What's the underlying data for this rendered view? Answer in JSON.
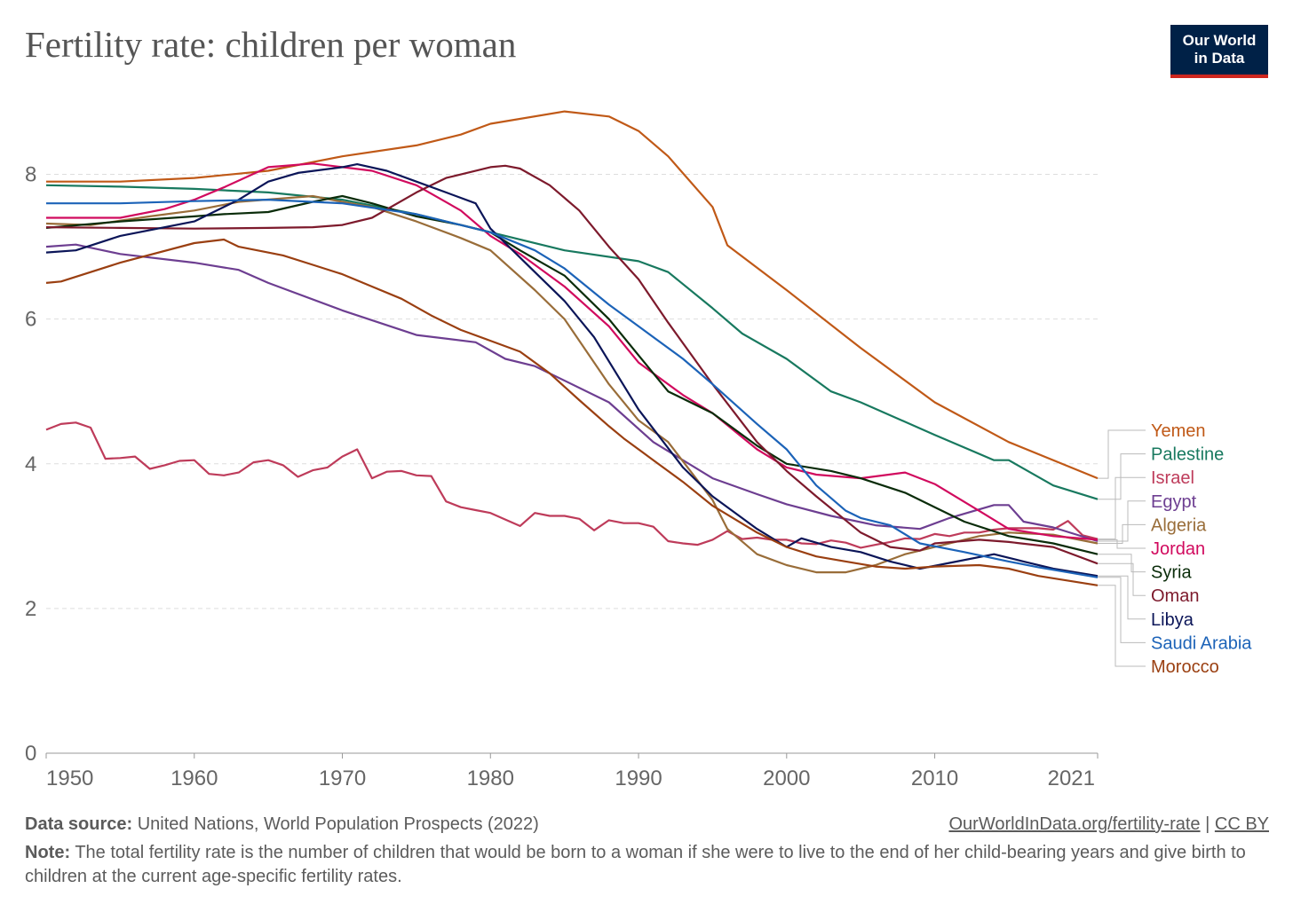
{
  "title": "Fertility rate: children per woman",
  "logo": {
    "line1": "Our World",
    "line2": "in Data"
  },
  "footer": {
    "source_label": "Data source:",
    "source_text": "United Nations, World Population Prospects (2022)",
    "note_label": "Note:",
    "note_text": "The total fertility rate is the number of children that would be born to a woman if she were to live to the end of her child-bearing years and give birth to children at the current age-specific fertility rates.",
    "link_text": "OurWorldInData.org/fertility-rate",
    "separator": "|",
    "license": "CC BY"
  },
  "chart_data": {
    "type": "line",
    "title": "Fertility rate: children per woman",
    "xlabel": "",
    "ylabel": "",
    "xlim": [
      1950,
      2021
    ],
    "ylim": [
      0,
      9
    ],
    "xticks": [
      "1950",
      "1960",
      "1970",
      "1980",
      "1990",
      "2000",
      "2010",
      "2021"
    ],
    "xtick_values": [
      1950,
      1960,
      1970,
      1980,
      1990,
      2000,
      2010,
      2021
    ],
    "yticks": [
      "0",
      "2",
      "4",
      "6",
      "8"
    ],
    "ytick_values": [
      0,
      2,
      4,
      6,
      8
    ],
    "grid": "horizontal dashed",
    "legend_position": "right",
    "series": [
      {
        "name": "Yemen",
        "color": "#c05917",
        "x": [
          1950,
          1955,
          1960,
          1965,
          1970,
          1975,
          1978,
          1980,
          1985,
          1988,
          1990,
          1992,
          1995,
          1996,
          2000,
          2005,
          2010,
          2015,
          2021
        ],
        "y": [
          7.9,
          7.9,
          7.95,
          8.05,
          8.25,
          8.4,
          8.55,
          8.7,
          8.87,
          8.8,
          8.6,
          8.25,
          7.55,
          7.02,
          6.4,
          5.6,
          4.85,
          4.3,
          3.8
        ]
      },
      {
        "name": "Palestine",
        "color": "#18795f",
        "x": [
          1950,
          1955,
          1960,
          1965,
          1970,
          1975,
          1980,
          1985,
          1990,
          1992,
          1995,
          1997,
          2000,
          2003,
          2005,
          2010,
          2014,
          2015,
          2018,
          2021
        ],
        "y": [
          7.85,
          7.83,
          7.8,
          7.75,
          7.65,
          7.45,
          7.2,
          6.95,
          6.8,
          6.65,
          6.15,
          5.8,
          5.45,
          5.0,
          4.85,
          4.4,
          4.05,
          4.05,
          3.7,
          3.51
        ]
      },
      {
        "name": "Israel",
        "color": "#be3b5a",
        "x": [
          1950,
          1951,
          1952,
          1953,
          1954,
          1955,
          1956,
          1957,
          1958,
          1959,
          1960,
          1961,
          1962,
          1963,
          1964,
          1965,
          1966,
          1967,
          1968,
          1969,
          1970,
          1971,
          1972,
          1973,
          1974,
          1975,
          1976,
          1977,
          1978,
          1979,
          1980,
          1981,
          1982,
          1983,
          1984,
          1985,
          1986,
          1987,
          1988,
          1989,
          1990,
          1991,
          1992,
          1993,
          1994,
          1995,
          1996,
          1997,
          1998,
          1999,
          2000,
          2001,
          2002,
          2003,
          2004,
          2005,
          2006,
          2007,
          2008,
          2009,
          2010,
          2011,
          2012,
          2013,
          2014,
          2015,
          2016,
          2017,
          2018,
          2019,
          2020,
          2021
        ],
        "y": [
          4.47,
          4.55,
          4.57,
          4.5,
          4.07,
          4.08,
          4.1,
          3.93,
          3.98,
          4.04,
          4.05,
          3.86,
          3.84,
          3.88,
          4.02,
          4.05,
          3.98,
          3.82,
          3.91,
          3.95,
          4.1,
          4.2,
          3.8,
          3.89,
          3.9,
          3.84,
          3.83,
          3.48,
          3.4,
          3.36,
          3.32,
          3.23,
          3.14,
          3.32,
          3.28,
          3.28,
          3.24,
          3.08,
          3.22,
          3.18,
          3.18,
          3.13,
          2.93,
          2.9,
          2.88,
          2.95,
          3.07,
          2.96,
          2.98,
          2.95,
          2.95,
          2.9,
          2.89,
          2.94,
          2.91,
          2.84,
          2.88,
          2.92,
          2.97,
          2.96,
          3.03,
          3.0,
          3.05,
          3.05,
          3.09,
          3.11,
          3.11,
          3.11,
          3.09,
          3.21,
          3.01,
          2.96
        ]
      },
      {
        "name": "Egypt",
        "color": "#6d3e91",
        "x": [
          1950,
          1952,
          1955,
          1960,
          1963,
          1965,
          1970,
          1975,
          1979,
          1981,
          1983,
          1988,
          1991,
          1995,
          1998,
          2000,
          2003,
          2006,
          2009,
          2011,
          2014,
          2015,
          2016,
          2018,
          2021
        ],
        "y": [
          7.0,
          7.03,
          6.9,
          6.78,
          6.68,
          6.5,
          6.12,
          5.78,
          5.68,
          5.45,
          5.35,
          4.85,
          4.3,
          3.8,
          3.58,
          3.44,
          3.28,
          3.15,
          3.1,
          3.25,
          3.43,
          3.43,
          3.2,
          3.12,
          2.93
        ]
      },
      {
        "name": "Algeria",
        "color": "#996d39",
        "x": [
          1950,
          1953,
          1957,
          1960,
          1963,
          1968,
          1970,
          1972,
          1975,
          1978,
          1980,
          1983,
          1985,
          1988,
          1990,
          1992,
          1995,
          1996,
          1998,
          2000,
          2002,
          2004,
          2006,
          2008,
          2010,
          2013,
          2015,
          2018,
          2021
        ],
        "y": [
          7.32,
          7.3,
          7.42,
          7.5,
          7.62,
          7.7,
          7.62,
          7.55,
          7.35,
          7.12,
          6.95,
          6.4,
          6.0,
          5.1,
          4.6,
          4.3,
          3.5,
          3.1,
          2.75,
          2.6,
          2.5,
          2.5,
          2.6,
          2.75,
          2.85,
          3.0,
          3.05,
          3.02,
          2.9
        ]
      },
      {
        "name": "Jordan",
        "color": "#d10a5e",
        "x": [
          1950,
          1955,
          1958,
          1960,
          1962,
          1965,
          1968,
          1970,
          1972,
          1975,
          1978,
          1980,
          1982,
          1985,
          1988,
          1990,
          1993,
          1995,
          1998,
          2000,
          2002,
          2005,
          2008,
          2010,
          2013,
          2015,
          2018,
          2021
        ],
        "y": [
          7.4,
          7.4,
          7.52,
          7.65,
          7.82,
          8.1,
          8.15,
          8.1,
          8.05,
          7.85,
          7.5,
          7.15,
          6.9,
          6.45,
          5.9,
          5.4,
          4.95,
          4.7,
          4.2,
          3.95,
          3.85,
          3.8,
          3.88,
          3.72,
          3.35,
          3.1,
          3.0,
          2.95
        ]
      },
      {
        "name": "Syria",
        "color": "#0a2c0a",
        "x": [
          1950,
          1955,
          1960,
          1962,
          1965,
          1968,
          1970,
          1972,
          1975,
          1978,
          1980,
          1982,
          1985,
          1988,
          1990,
          1992,
          1995,
          1998,
          2000,
          2003,
          2005,
          2008,
          2010,
          2012,
          2015,
          2018,
          2021
        ],
        "y": [
          7.26,
          7.35,
          7.42,
          7.45,
          7.48,
          7.62,
          7.7,
          7.6,
          7.42,
          7.3,
          7.2,
          6.95,
          6.6,
          6.0,
          5.5,
          5.0,
          4.7,
          4.25,
          4.0,
          3.9,
          3.8,
          3.6,
          3.4,
          3.2,
          3.0,
          2.9,
          2.75
        ]
      },
      {
        "name": "Oman",
        "color": "#7d1a2c",
        "x": [
          1950,
          1955,
          1960,
          1965,
          1968,
          1970,
          1972,
          1975,
          1977,
          1980,
          1981,
          1982,
          1984,
          1986,
          1988,
          1990,
          1992,
          1995,
          1998,
          2000,
          2002,
          2005,
          2007,
          2009,
          2010,
          2013,
          2015,
          2018,
          2021
        ],
        "y": [
          7.27,
          7.26,
          7.25,
          7.26,
          7.27,
          7.3,
          7.4,
          7.75,
          7.95,
          8.1,
          8.12,
          8.08,
          7.85,
          7.5,
          7.0,
          6.55,
          5.95,
          5.1,
          4.3,
          3.9,
          3.55,
          3.05,
          2.85,
          2.8,
          2.9,
          2.95,
          2.92,
          2.85,
          2.62
        ]
      },
      {
        "name": "Libya",
        "color": "#0b1558",
        "x": [
          1950,
          1952,
          1955,
          1960,
          1963,
          1965,
          1967,
          1970,
          1971,
          1973,
          1975,
          1977,
          1979,
          1980,
          1983,
          1985,
          1987,
          1990,
          1993,
          1995,
          1998,
          2000,
          2001,
          2003,
          2005,
          2007,
          2009,
          2011,
          2014,
          2016,
          2018,
          2021
        ],
        "y": [
          6.92,
          6.95,
          7.15,
          7.35,
          7.65,
          7.9,
          8.02,
          8.1,
          8.14,
          8.05,
          7.9,
          7.75,
          7.6,
          7.25,
          6.65,
          6.25,
          5.75,
          4.75,
          3.95,
          3.55,
          3.1,
          2.85,
          2.97,
          2.85,
          2.78,
          2.65,
          2.55,
          2.63,
          2.75,
          2.65,
          2.55,
          2.45
        ]
      },
      {
        "name": "Saudi Arabia",
        "color": "#1c63b8",
        "x": [
          1950,
          1955,
          1960,
          1965,
          1970,
          1975,
          1980,
          1983,
          1985,
          1988,
          1990,
          1993,
          1995,
          1998,
          2000,
          2002,
          2004,
          2005,
          2007,
          2009,
          2012,
          2015,
          2017,
          2021
        ],
        "y": [
          7.6,
          7.6,
          7.63,
          7.65,
          7.6,
          7.45,
          7.2,
          6.95,
          6.7,
          6.2,
          5.9,
          5.45,
          5.1,
          4.55,
          4.2,
          3.7,
          3.35,
          3.25,
          3.15,
          2.9,
          2.78,
          2.65,
          2.57,
          2.43
        ]
      },
      {
        "name": "Morocco",
        "color": "#9a3f11",
        "x": [
          1950,
          1951,
          1955,
          1960,
          1962,
          1963,
          1966,
          1968,
          1970,
          1972,
          1974,
          1976,
          1978,
          1980,
          1982,
          1984,
          1986,
          1988,
          1989,
          1991,
          1993,
          1995,
          1998,
          2000,
          2002,
          2004,
          2006,
          2008,
          2010,
          2013,
          2015,
          2017,
          2021
        ],
        "y": [
          6.5,
          6.52,
          6.78,
          7.05,
          7.1,
          7.0,
          6.88,
          6.75,
          6.62,
          6.45,
          6.28,
          6.05,
          5.85,
          5.7,
          5.55,
          5.25,
          4.88,
          4.52,
          4.35,
          4.05,
          3.75,
          3.42,
          3.05,
          2.85,
          2.72,
          2.65,
          2.58,
          2.55,
          2.58,
          2.6,
          2.55,
          2.45,
          2.32
        ]
      }
    ],
    "legend": [
      "Yemen",
      "Palestine",
      "Israel",
      "Egypt",
      "Algeria",
      "Jordan",
      "Syria",
      "Oman",
      "Libya",
      "Saudi Arabia",
      "Morocco"
    ]
  }
}
